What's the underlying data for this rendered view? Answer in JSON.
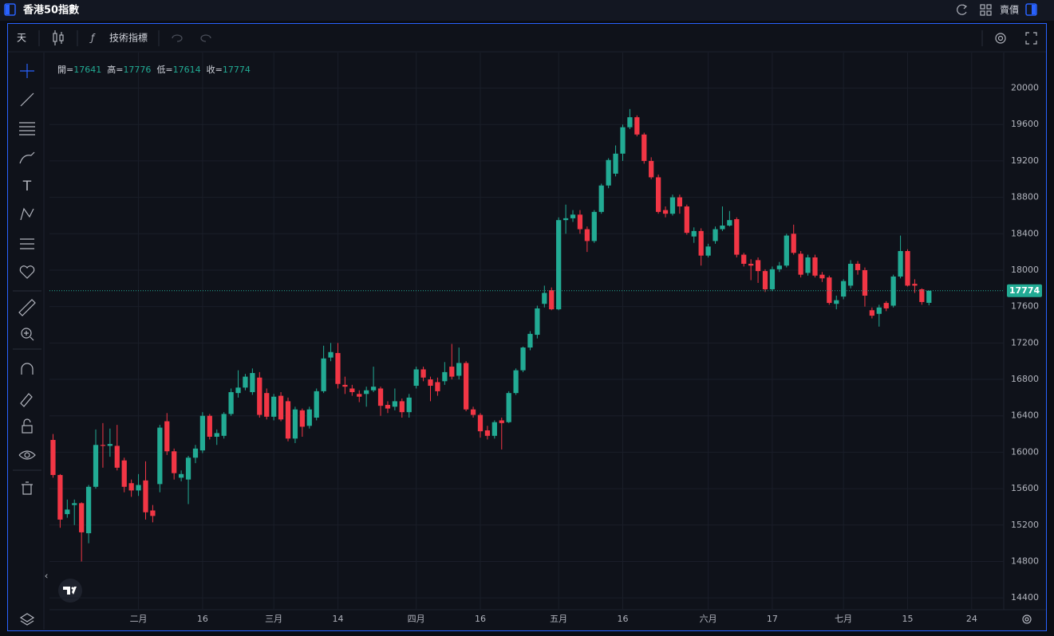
{
  "header": {
    "title": "香港50指數",
    "side": "賣價"
  },
  "toolbar": {
    "interval": "天",
    "indicators": "技術指標"
  },
  "chart_data": {
    "type": "candlestick",
    "ohlc_labels": [
      "開=",
      "高=",
      "低=",
      "收="
    ],
    "up_color": "#22ab94",
    "down_color": "#f23645",
    "grid": true,
    "ylim": [
      14270,
      20390
    ],
    "yticks": [
      14400,
      14800,
      15200,
      15600,
      16000,
      16400,
      16800,
      17200,
      17600,
      18000,
      18400,
      18800,
      19200,
      19600,
      20000
    ],
    "categories": [
      null,
      null,
      null,
      null,
      null,
      null,
      null,
      null,
      null,
      null,
      null,
      null,
      "二月",
      null,
      null,
      null,
      null,
      null,
      null,
      null,
      null,
      "16",
      null,
      null,
      null,
      null,
      null,
      null,
      null,
      null,
      null,
      "三月",
      null,
      null,
      null,
      null,
      null,
      null,
      null,
      null,
      "14",
      null,
      null,
      null,
      null,
      null,
      null,
      null,
      null,
      null,
      null,
      "四月",
      null,
      null,
      null,
      null,
      null,
      null,
      null,
      null,
      "16",
      null,
      null,
      null,
      null,
      null,
      null,
      null,
      null,
      null,
      null,
      "五月",
      null,
      null,
      null,
      null,
      null,
      null,
      null,
      null,
      "16",
      null,
      null,
      null,
      null,
      null,
      null,
      null,
      null,
      null,
      null,
      null,
      "六月",
      null,
      null,
      null,
      null,
      null,
      null,
      null,
      null,
      "17",
      null,
      null,
      null,
      null,
      null,
      null,
      null,
      null,
      null,
      "七月",
      null,
      null,
      null,
      null,
      null,
      null,
      null,
      null,
      "15",
      null,
      null,
      null,
      null,
      null,
      null,
      null,
      null,
      "24",
      null,
      null,
      null,
      null
    ],
    "open": [
      16135,
      15750,
      15320,
      15420,
      15440,
      15110,
      15620,
      16080,
      16070,
      16070,
      15910,
      15660,
      15580,
      15690,
      15360,
      15650,
      16340,
      16010,
      15720,
      15700,
      15940,
      16020,
      16400,
      16170,
      16180,
      16420,
      16650,
      16710,
      16660,
      16820,
      16650,
      16390,
      16620,
      16560,
      16150,
      16460,
      16290,
      16380,
      16670,
      17040,
      17090,
      16740,
      16700,
      16640,
      16640,
      16680,
      16700,
      16520,
      16500,
      16560,
      16440,
      16730,
      16910,
      16800,
      16770,
      16780,
      16940,
      16840,
      16980,
      16470,
      16410,
      16240,
      16180,
      16350,
      16330,
      16650,
      16900,
      17150,
      17290,
      17630,
      17780,
      17570,
      18550,
      18570,
      18610,
      18450,
      18320,
      18640,
      18930,
      19060,
      19280,
      19570,
      19680,
      19490,
      19200,
      19020,
      18660,
      18620,
      18800,
      18700,
      18370,
      18430,
      18160,
      18320,
      18450,
      18490,
      18560,
      18170,
      18070,
      18110,
      17990,
      17790,
      18010,
      18050,
      18400,
      18180,
      17970,
      18140,
      17950,
      17920,
      17630,
      17710,
      17830,
      18070,
      18000,
      17560,
      17520,
      17640,
      17610,
      17930,
      18210,
      17850,
      17790,
      17641,
      null,
      null,
      null,
      null,
      null,
      null,
      null,
      null,
      null,
      null
    ],
    "high": [
      16200,
      15760,
      15480,
      15480,
      15450,
      15640,
      16250,
      16320,
      16260,
      16300,
      15940,
      15700,
      15760,
      15900,
      15420,
      16300,
      16430,
      16040,
      15800,
      15960,
      16080,
      16440,
      16420,
      16250,
      16440,
      16700,
      16900,
      16860,
      16920,
      16880,
      16700,
      16640,
      16660,
      16600,
      16500,
      16480,
      16500,
      16700,
      17170,
      17200,
      17200,
      16830,
      16740,
      16680,
      16720,
      16940,
      16720,
      16560,
      16700,
      16590,
      16640,
      16940,
      16940,
      16830,
      16820,
      16990,
      17190,
      17150,
      17000,
      16500,
      16430,
      16290,
      16350,
      16380,
      16670,
      16920,
      17160,
      17330,
      17610,
      17830,
      17810,
      18580,
      18720,
      18660,
      18660,
      18480,
      18660,
      18950,
      19230,
      19370,
      19600,
      19770,
      19700,
      19510,
      19240,
      19050,
      18700,
      18830,
      18830,
      18720,
      18470,
      18460,
      18290,
      18480,
      18700,
      18650,
      18580,
      18190,
      18120,
      18140,
      18010,
      18040,
      18090,
      18400,
      18500,
      18210,
      18170,
      18170,
      17980,
      17940,
      17720,
      17900,
      18110,
      18100,
      18030,
      17590,
      17620,
      17660,
      17950,
      18380,
      18230,
      17900,
      17800,
      17776,
      null,
      null,
      null,
      null,
      null,
      null,
      null,
      null,
      null,
      null
    ],
    "low": [
      15720,
      15170,
      15280,
      15200,
      14800,
      15000,
      15600,
      15830,
      15950,
      15800,
      15560,
      15510,
      15520,
      15260,
      15230,
      15560,
      15970,
      15700,
      15680,
      15430,
      15880,
      15990,
      16140,
      16080,
      16150,
      16400,
      16600,
      16680,
      16630,
      16380,
      16360,
      16350,
      16340,
      16120,
      16100,
      16170,
      16260,
      16350,
      16650,
      17000,
      16700,
      16640,
      16620,
      16550,
      16500,
      16660,
      16400,
      16430,
      16460,
      16380,
      16380,
      16700,
      16780,
      16560,
      16620,
      16740,
      16800,
      16800,
      16450,
      16380,
      16160,
      16140,
      16150,
      16030,
      16320,
      16630,
      16880,
      17120,
      17250,
      17590,
      17560,
      17560,
      18400,
      18530,
      18400,
      18200,
      18300,
      18620,
      18900,
      19030,
      19200,
      19550,
      19470,
      19170,
      19000,
      18620,
      18580,
      18600,
      18620,
      18390,
      18300,
      18050,
      18140,
      18290,
      18430,
      18480,
      18140,
      18040,
      17890,
      17860,
      17760,
      17770,
      17980,
      18030,
      18170,
      17920,
      17940,
      17920,
      17870,
      17620,
      17570,
      17680,
      17800,
      17950,
      17600,
      17470,
      17380,
      17550,
      17590,
      17910,
      17820,
      17750,
      17620,
      17614,
      null,
      null,
      null,
      null,
      null,
      null,
      null,
      null,
      null,
      null
    ],
    "close": [
      15750,
      15260,
      15370,
      15440,
      15120,
      15620,
      16080,
      16070,
      16090,
      15830,
      15620,
      15580,
      15640,
      15340,
      15300,
      16270,
      16010,
      15770,
      15760,
      15940,
      16040,
      16400,
      16170,
      16210,
      16420,
      16660,
      16710,
      16830,
      16870,
      16410,
      16390,
      16610,
      16360,
      16150,
      16470,
      16280,
      16470,
      16670,
      17030,
      17100,
      16750,
      16720,
      16660,
      16610,
      16680,
      16720,
      16510,
      16480,
      16560,
      16440,
      16600,
      16910,
      16820,
      16730,
      16670,
      16880,
      16830,
      16980,
      16470,
      16410,
      16230,
      16180,
      16330,
      16320,
      16650,
      16900,
      17150,
      17300,
      17580,
      17750,
      17570,
      18550,
      18570,
      18610,
      18450,
      18320,
      18640,
      18930,
      19210,
      19280,
      19570,
      19680,
      19490,
      19200,
      19020,
      18640,
      18620,
      18800,
      18700,
      18410,
      18430,
      18160,
      18260,
      18450,
      18490,
      18550,
      18170,
      18070,
      18050,
      17990,
      17790,
      18010,
      18050,
      18380,
      18190,
      17950,
      18140,
      17940,
      17910,
      17640,
      17670,
      17880,
      18070,
      18000,
      17720,
      17500,
      17590,
      17580,
      17930,
      18210,
      17830,
      17830,
      17650,
      17774,
      null,
      null,
      null,
      null,
      null,
      null,
      null,
      null,
      null,
      null
    ]
  }
}
